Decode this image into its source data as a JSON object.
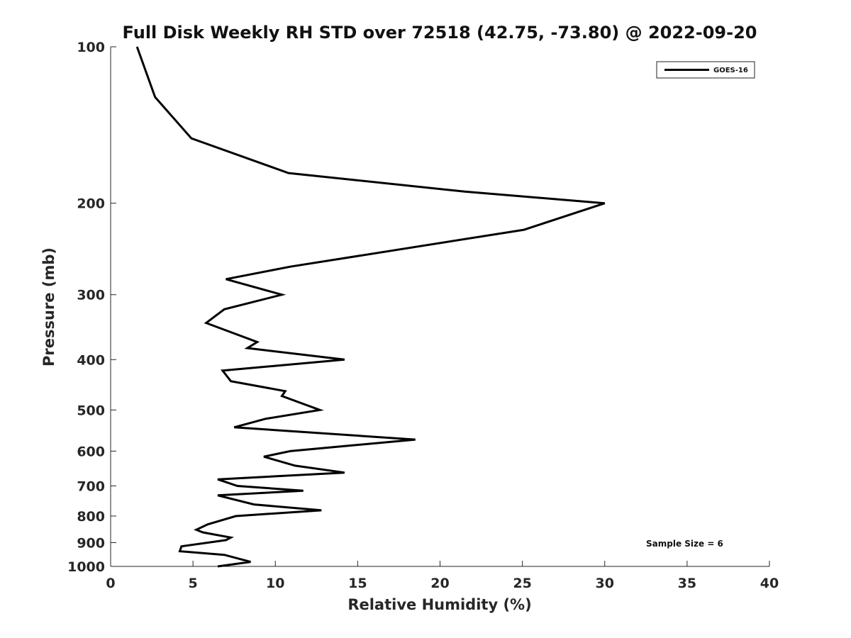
{
  "chart_data": {
    "type": "line",
    "title": "Full Disk Weekly RH STD over 72518 (42.75, -73.80) @ 2022-09-20",
    "xlabel": "Relative Humidity (%)",
    "ylabel": "Pressure (mb)",
    "xlim": [
      0,
      40
    ],
    "ylim": [
      100,
      1000
    ],
    "yscale": "log",
    "y_reversed": true,
    "grid": false,
    "x_ticks": [
      "0",
      "5",
      "10",
      "15",
      "20",
      "25",
      "30",
      "35",
      "40"
    ],
    "y_ticks": [
      "100",
      "200",
      "300",
      "400",
      "500",
      "600",
      "700",
      "800",
      "900",
      "1000"
    ],
    "legend": {
      "position": "top-right",
      "entries": [
        "GOES-16"
      ]
    },
    "annotation": "Sample Size = 6",
    "series": [
      {
        "name": "GOES-16",
        "color": "#000000",
        "points": [
          [
            1.6,
            100
          ],
          [
            2.7,
            125
          ],
          [
            4.9,
            150
          ],
          [
            10.8,
            175
          ],
          [
            21.5,
            190
          ],
          [
            30.0,
            200
          ],
          [
            25.1,
            225
          ],
          [
            10.9,
            265
          ],
          [
            7.0,
            280
          ],
          [
            10.4,
            300
          ],
          [
            6.9,
            320
          ],
          [
            5.8,
            340
          ],
          [
            8.9,
            370
          ],
          [
            8.3,
            380
          ],
          [
            14.2,
            400
          ],
          [
            6.8,
            420
          ],
          [
            7.3,
            440
          ],
          [
            10.6,
            460
          ],
          [
            10.4,
            470
          ],
          [
            12.7,
            500
          ],
          [
            9.4,
            520
          ],
          [
            7.5,
            540
          ],
          [
            18.5,
            570
          ],
          [
            13.4,
            590
          ],
          [
            10.9,
            600
          ],
          [
            9.3,
            615
          ],
          [
            11.2,
            640
          ],
          [
            14.2,
            660
          ],
          [
            6.5,
            680
          ],
          [
            7.7,
            700
          ],
          [
            11.7,
            715
          ],
          [
            6.5,
            730
          ],
          [
            8.7,
            760
          ],
          [
            12.8,
            780
          ],
          [
            7.6,
            800
          ],
          [
            5.9,
            830
          ],
          [
            5.2,
            850
          ],
          [
            5.6,
            860
          ],
          [
            7.3,
            880
          ],
          [
            7.0,
            890
          ],
          [
            4.3,
            915
          ],
          [
            4.2,
            935
          ],
          [
            6.9,
            950
          ],
          [
            8.5,
            980
          ],
          [
            6.5,
            1000
          ]
        ]
      }
    ]
  }
}
